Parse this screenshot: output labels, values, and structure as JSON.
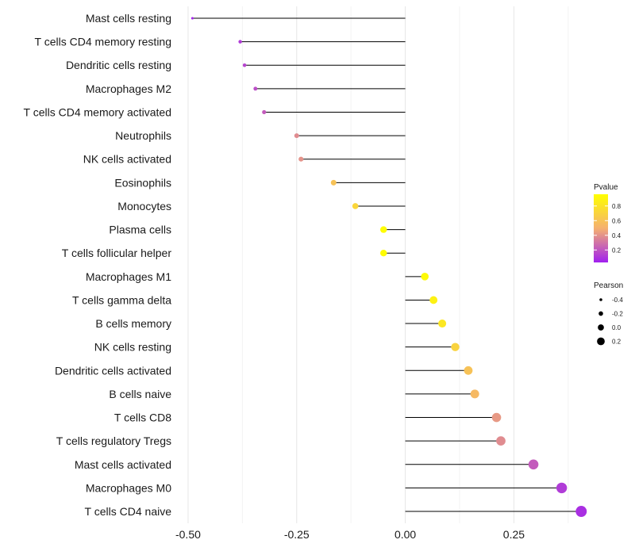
{
  "chart_data": {
    "type": "lollipop",
    "title": "",
    "xlabel": "",
    "ylabel": "",
    "xlim": [
      -0.52,
      0.41
    ],
    "x_ticks": [
      -0.5,
      -0.25,
      0.0,
      0.25
    ],
    "x_tick_labels": [
      "-0.50",
      "-0.25",
      "0.00",
      "0.25"
    ],
    "grid": true,
    "categories": [
      "Mast cells resting",
      "T cells CD4 memory resting",
      "Dendritic cells resting",
      "Macrophages M2",
      "T cells CD4 memory activated",
      "Neutrophils",
      "NK cells activated",
      "Eosinophils",
      "Monocytes",
      "Plasma cells",
      "T cells follicular helper",
      "Macrophages M1",
      "T cells gamma delta",
      "B cells memory",
      "NK cells resting",
      "Dendritic cells activated",
      "B cells naive",
      "T cells CD8",
      "T cells regulatory  Tregs ",
      "Mast cells activated",
      "Macrophages M0",
      "T cells CD4 naive"
    ],
    "pearson": [
      -0.49,
      -0.38,
      -0.37,
      -0.345,
      -0.325,
      -0.25,
      -0.24,
      -0.165,
      -0.115,
      -0.05,
      -0.05,
      0.045,
      0.065,
      0.085,
      0.115,
      0.145,
      0.16,
      0.21,
      0.22,
      0.295,
      0.36,
      0.405
    ],
    "pvalue": [
      0.05,
      0.12,
      0.15,
      0.18,
      0.22,
      0.38,
      0.4,
      0.6,
      0.72,
      0.95,
      0.95,
      0.93,
      0.88,
      0.82,
      0.7,
      0.6,
      0.55,
      0.42,
      0.38,
      0.22,
      0.12,
      0.08
    ],
    "legend_pvalue": {
      "title": "Pvalue",
      "ticks": [
        0.8,
        0.6,
        0.4,
        0.2
      ],
      "tick_labels": [
        "0.8",
        "0.6",
        "0.4",
        "0.2"
      ],
      "range": [
        0.03,
        0.96
      ],
      "colors": [
        "#a020f0",
        "#f5b070",
        "#ffff00"
      ]
    },
    "legend_pearson": {
      "title": "Pearson",
      "values": [
        -0.4,
        -0.2,
        0.0,
        0.2
      ],
      "labels": [
        "-0.4",
        "-0.2",
        "0.0",
        "0.2"
      ]
    },
    "legend_placement": "right"
  }
}
